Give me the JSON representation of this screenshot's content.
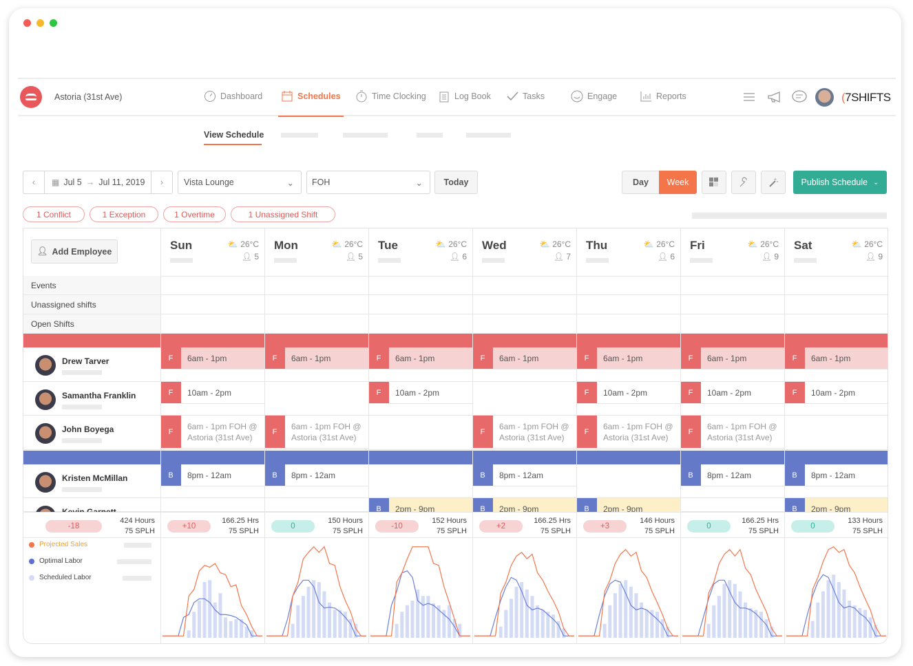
{
  "colors": {
    "accent": "#f5754a",
    "foh": "#e8696a",
    "foh_light": "#f6d2d3",
    "boh": "#6479c8",
    "publish": "#33ac96",
    "yellow": "#fdf0c8",
    "teal_badge": "#c5efe8",
    "red_badge": "#f8d3d4"
  },
  "header": {
    "location": "Astoria (31st Ave)",
    "brand": "7SHIFTS",
    "nav": [
      {
        "label": "Dashboard",
        "icon": "gauge-icon"
      },
      {
        "label": "Schedules",
        "icon": "calendar-icon",
        "active": true
      },
      {
        "label": "Time Clocking",
        "icon": "stopwatch-icon"
      },
      {
        "label": "Log Book",
        "icon": "clipboard-icon"
      },
      {
        "label": "Tasks",
        "icon": "check-icon"
      },
      {
        "label": "Engage",
        "icon": "smiley-icon"
      },
      {
        "label": "Reports",
        "icon": "bar-chart-icon"
      }
    ]
  },
  "subnav": {
    "active": "View Schedule"
  },
  "toolbar": {
    "date_from": "Jul 5",
    "date_to": "Jul 11, 2019",
    "location": "Vista Lounge",
    "department": "FOH",
    "today": "Today",
    "day": "Day",
    "week": "Week",
    "publish": "Publish Schedule"
  },
  "alerts": [
    "1 Conflict",
    "1 Exception",
    "1 Overtime",
    "1 Unassigned Shift"
  ],
  "add_employee": "Add Employee",
  "days": [
    {
      "name": "Sun",
      "temp": "26°C",
      "count": "5"
    },
    {
      "name": "Mon",
      "temp": "26°C",
      "count": "5"
    },
    {
      "name": "Tue",
      "temp": "26°C",
      "count": "6"
    },
    {
      "name": "Wed",
      "temp": "26°C",
      "count": "7"
    },
    {
      "name": "Thu",
      "temp": "26°C",
      "count": "6"
    },
    {
      "name": "Fri",
      "temp": "26°C",
      "count": "9"
    },
    {
      "name": "Sat",
      "temp": "26°C",
      "count": "9"
    }
  ],
  "rows": [
    "Events",
    "Unassigned shifts",
    "Open Shifts"
  ],
  "employees": [
    {
      "name": "Drew Tarver",
      "tag": "F",
      "style": "pink",
      "shifts": [
        "6am - 1pm",
        "6am - 1pm",
        "6am - 1pm",
        "6am - 1pm",
        "6am - 1pm",
        "6am - 1pm",
        "6am - 1pm"
      ]
    },
    {
      "name": "Samantha Franklin",
      "tag": "F",
      "style": "white",
      "shifts": [
        "10am - 2pm",
        "",
        "10am - 2pm",
        "",
        "10am - 2pm",
        "10am - 2pm",
        "10am - 2pm"
      ]
    },
    {
      "name": "John Boyega",
      "tag": "F",
      "style": "gray",
      "shifts": [
        "6am - 1pm FOH @ Astoria (31st Ave)",
        "6am - 1pm FOH @ Astoria (31st Ave)",
        "",
        "6am - 1pm FOH @ Astoria (31st Ave)",
        "6am - 1pm FOH @ Astoria (31st Ave)",
        "6am - 1pm FOH @ Astoria (31st Ave)",
        ""
      ]
    },
    {
      "name": "Kristen McMillan",
      "tag": "B",
      "style": "white",
      "shifts": [
        "8pm - 12am",
        "8pm - 12am",
        "",
        "8pm - 12am",
        "",
        "8pm - 12am",
        "8pm - 12am"
      ]
    },
    {
      "name": "Kevin Garnett",
      "tag": "B",
      "style": "yellow",
      "shifts": [
        "",
        "",
        "2pm - 9pm",
        "2pm - 9pm",
        "2pm - 9pm",
        "",
        "2pm - 9pm"
      ]
    }
  ],
  "stats": [
    {
      "badge": "-18",
      "hours": "424 Hours",
      "splh": "75 SPLH"
    },
    {
      "badge": "+10",
      "hours": "166.25 Hrs",
      "splh": "75 SPLH"
    },
    {
      "badge": "0",
      "hours": "150 Hours",
      "splh": "75 SPLH"
    },
    {
      "badge": "-10",
      "hours": "152 Hours",
      "splh": "75 SPLH"
    },
    {
      "badge": "+2",
      "hours": "166.25 Hrs",
      "splh": "75 SPLH"
    },
    {
      "badge": "+3",
      "hours": "146 Hours",
      "splh": "75 SPLH"
    },
    {
      "badge": "0",
      "hours": "166.25 Hrs",
      "splh": "75 SPLH"
    },
    {
      "badge": "0",
      "hours": "133 Hours",
      "splh": "75 SPLH"
    }
  ],
  "legend": [
    {
      "label": "Projected Sales",
      "color": "#f5754a"
    },
    {
      "label": "Optimal Labor",
      "color": "#5b6fd6"
    },
    {
      "label": "Scheduled Labor",
      "color": "#d3dbf5"
    }
  ],
  "chart_data": {
    "type": "line",
    "grid": false,
    "days": [
      {
        "day": "Sun",
        "sales": [
          2,
          2,
          2,
          2,
          2,
          45,
          52,
          72,
          78,
          76,
          80,
          70,
          68,
          55,
          57,
          35,
          25,
          12,
          2,
          2
        ],
        "optimal": [
          2,
          2,
          2,
          2,
          22,
          25,
          38,
          42,
          42,
          38,
          30,
          25,
          25,
          24,
          22,
          18,
          14,
          2,
          2,
          2
        ],
        "scheduled": [
          0,
          0,
          0,
          0,
          0,
          8,
          28,
          40,
          60,
          62,
          38,
          48,
          22,
          18,
          20,
          20,
          12,
          8,
          0,
          0
        ]
      },
      {
        "day": "Mon",
        "sales": [
          2,
          2,
          2,
          2,
          2,
          45,
          60,
          85,
          92,
          98,
          92,
          98,
          80,
          78,
          55,
          40,
          28,
          10,
          2,
          2
        ],
        "optimal": [
          2,
          2,
          2,
          2,
          20,
          45,
          55,
          62,
          62,
          55,
          38,
          32,
          33,
          32,
          28,
          22,
          15,
          2,
          2,
          2
        ],
        "scheduled": [
          0,
          0,
          0,
          0,
          0,
          15,
          35,
          45,
          55,
          62,
          60,
          50,
          38,
          30,
          30,
          28,
          20,
          15,
          0,
          0
        ]
      },
      {
        "day": "Tue",
        "sales": [
          2,
          2,
          2,
          2,
          2,
          60,
          70,
          85,
          98,
          98,
          98,
          98,
          80,
          78,
          55,
          38,
          20,
          2,
          2,
          2
        ],
        "optimal": [
          2,
          2,
          2,
          2,
          35,
          50,
          70,
          72,
          65,
          40,
          35,
          37,
          35,
          30,
          25,
          20,
          12,
          2,
          2,
          2
        ],
        "scheduled": [
          0,
          0,
          0,
          0,
          0,
          15,
          28,
          35,
          40,
          52,
          45,
          45,
          37,
          35,
          30,
          35,
          20,
          15,
          0,
          0
        ]
      },
      {
        "day": "Wed",
        "sales": [
          2,
          2,
          2,
          2,
          2,
          48,
          60,
          78,
          88,
          92,
          85,
          90,
          70,
          62,
          50,
          40,
          28,
          10,
          2,
          2
        ],
        "optimal": [
          2,
          2,
          2,
          2,
          22,
          40,
          55,
          65,
          62,
          50,
          35,
          30,
          32,
          30,
          25,
          20,
          14,
          2,
          2,
          2
        ],
        "scheduled": [
          0,
          0,
          0,
          0,
          0,
          12,
          30,
          42,
          55,
          60,
          52,
          45,
          35,
          30,
          28,
          25,
          18,
          10,
          0,
          0
        ]
      },
      {
        "day": "Thu",
        "sales": [
          2,
          2,
          2,
          2,
          2,
          50,
          62,
          80,
          90,
          95,
          88,
          92,
          72,
          65,
          50,
          38,
          25,
          10,
          2,
          2
        ],
        "optimal": [
          2,
          2,
          2,
          2,
          25,
          45,
          58,
          62,
          60,
          48,
          35,
          30,
          32,
          30,
          25,
          20,
          14,
          2,
          2,
          2
        ],
        "scheduled": [
          0,
          0,
          0,
          0,
          0,
          15,
          35,
          48,
          58,
          62,
          55,
          48,
          38,
          30,
          30,
          28,
          20,
          12,
          0,
          0
        ]
      },
      {
        "day": "Fri",
        "sales": [
          2,
          2,
          2,
          2,
          2,
          48,
          60,
          80,
          90,
          95,
          88,
          95,
          75,
          68,
          52,
          40,
          28,
          10,
          2,
          2
        ],
        "optimal": [
          2,
          2,
          2,
          2,
          22,
          42,
          58,
          62,
          62,
          50,
          38,
          32,
          32,
          30,
          26,
          20,
          14,
          2,
          2,
          2
        ],
        "scheduled": [
          0,
          0,
          0,
          0,
          0,
          15,
          35,
          45,
          58,
          62,
          58,
          50,
          38,
          32,
          30,
          28,
          20,
          12,
          0,
          0
        ]
      },
      {
        "day": "Sat",
        "sales": [
          2,
          2,
          2,
          2,
          2,
          52,
          65,
          82,
          95,
          98,
          92,
          95,
          78,
          70,
          55,
          42,
          30,
          12,
          2,
          2
        ],
        "optimal": [
          2,
          2,
          2,
          2,
          25,
          45,
          60,
          68,
          65,
          52,
          38,
          32,
          34,
          32,
          26,
          22,
          15,
          2,
          2,
          2
        ],
        "scheduled": [
          0,
          0,
          0,
          0,
          0,
          18,
          38,
          50,
          62,
          68,
          60,
          52,
          40,
          35,
          32,
          30,
          22,
          14,
          0,
          0
        ]
      }
    ]
  }
}
